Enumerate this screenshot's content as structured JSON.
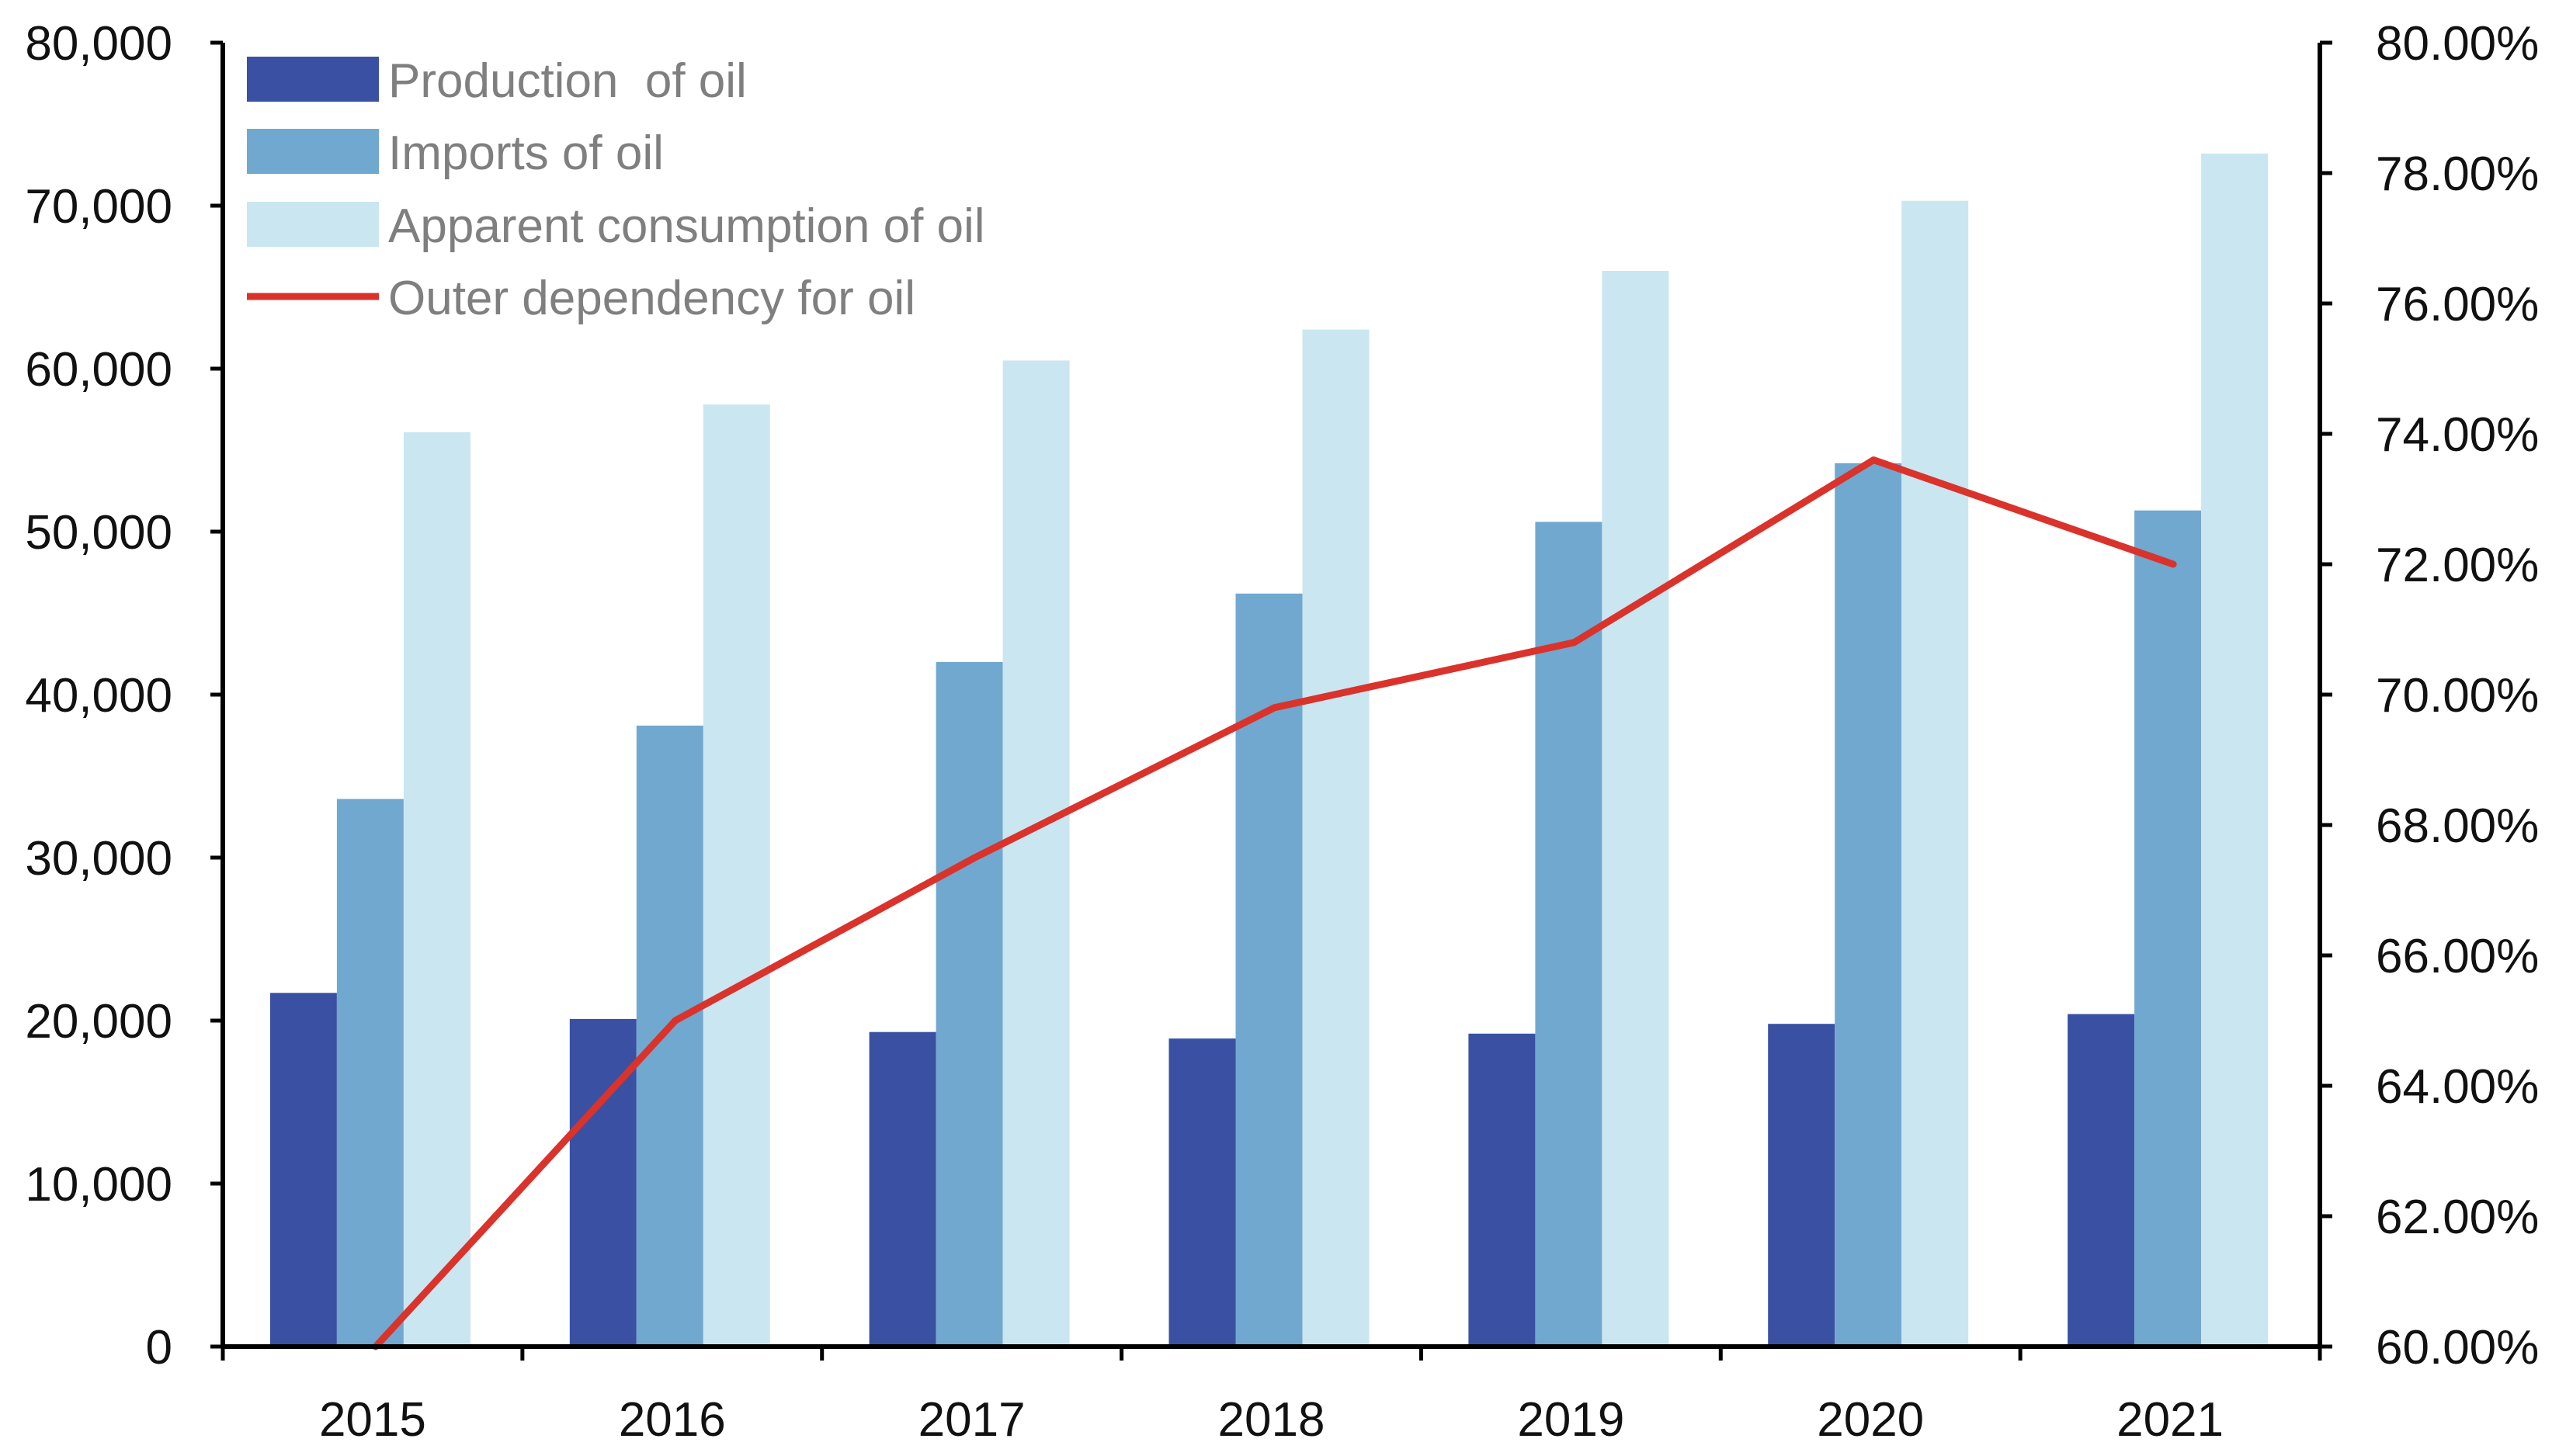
{
  "chart_data": {
    "type": "bar",
    "title": "",
    "categories": [
      "2015",
      "2016",
      "2017",
      "2018",
      "2019",
      "2020",
      "2021"
    ],
    "series": [
      {
        "name": "Production  of oil",
        "kind": "bar",
        "axis": "left",
        "color": "#3a50a2",
        "values": [
          21700,
          20100,
          19300,
          18900,
          19200,
          19800,
          20400
        ]
      },
      {
        "name": "Imports of oil",
        "kind": "bar",
        "axis": "left",
        "color": "#71a8cf",
        "values": [
          33600,
          38100,
          42000,
          46200,
          50600,
          54200,
          51300
        ]
      },
      {
        "name": "Apparent consumption of oil",
        "kind": "bar",
        "axis": "left",
        "color": "#cae6f1",
        "values": [
          56100,
          57800,
          60500,
          62400,
          66000,
          70300,
          73200
        ]
      },
      {
        "name": "Outer dependency for oil",
        "kind": "line",
        "axis": "right",
        "color": "#d9332b",
        "values": [
          60.0,
          65.0,
          67.5,
          69.8,
          70.8,
          73.6,
          72.0
        ]
      }
    ],
    "y_left": {
      "min": 0,
      "max": 80000,
      "tick_labels": [
        "0",
        "10,000",
        "20,000",
        "30,000",
        "40,000",
        "50,000",
        "60,000",
        "70,000",
        "80,000"
      ]
    },
    "y_right": {
      "min": 60,
      "max": 80,
      "tick_labels": [
        "60.00%",
        "62.00%",
        "64.00%",
        "66.00%",
        "68.00%",
        "70.00%",
        "72.00%",
        "74.00%",
        "76.00%",
        "78.00%",
        "80.00%"
      ]
    },
    "xlabel": "",
    "ylabel_left": "",
    "ylabel_right": "",
    "legend_position": "top-left",
    "grid": false
  }
}
